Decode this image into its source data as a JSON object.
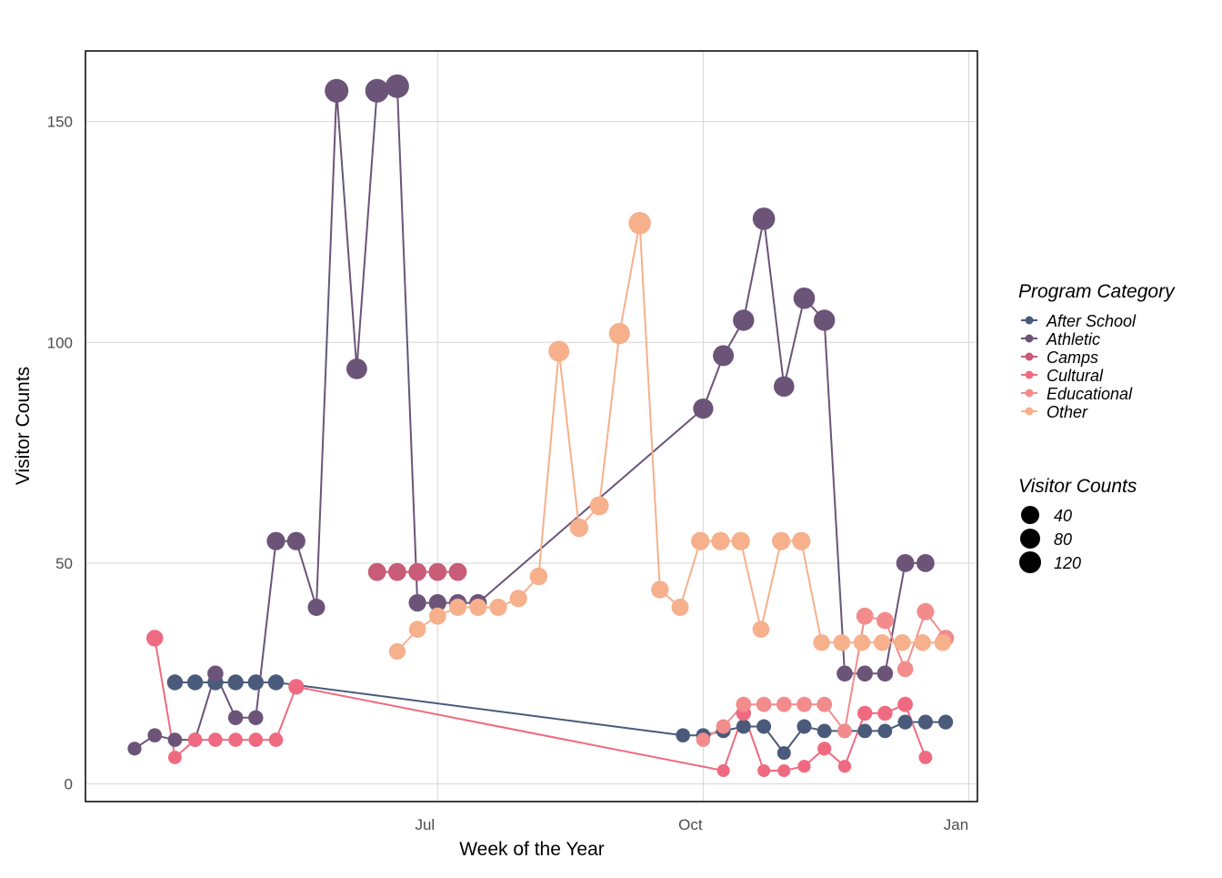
{
  "chart_data": {
    "type": "scatter",
    "title": "",
    "xlabel": "Week of the Year",
    "ylabel": "Visitor Counts",
    "grid": true,
    "legend_position": "right",
    "x_ticks": [
      "Jul",
      "Oct",
      "Jan"
    ],
    "x_tick_values": [
      "2018-07-01",
      "2018-10-01",
      "2019-01-01"
    ],
    "xlim": [
      "2018-03-01",
      "2019-01-04"
    ],
    "y_ticks": [
      0,
      50,
      100,
      150
    ],
    "ylim": [
      -4,
      166
    ],
    "color_legend": {
      "title": "Program Category",
      "entries": [
        "After School",
        "Athletic",
        "Camps",
        "Cultural",
        "Educational",
        "Other"
      ]
    },
    "size_legend": {
      "title": "Visitor Counts",
      "entries": [
        "40",
        "80",
        "120"
      ]
    },
    "series": [
      {
        "name": "After School",
        "color": "#4a5a7a",
        "x": [
          "2018-04-01",
          "2018-04-08",
          "2018-04-15",
          "2018-04-22",
          "2018-04-29",
          "2018-05-06",
          "2018-09-24",
          "2018-10-01",
          "2018-10-08",
          "2018-10-15",
          "2018-10-22",
          "2018-10-29",
          "2018-11-05",
          "2018-11-12",
          "2018-11-19",
          "2018-11-26",
          "2018-12-03",
          "2018-12-10",
          "2018-12-17",
          "2018-12-24"
        ],
        "y": [
          23,
          23,
          23,
          23,
          23,
          23,
          11,
          11,
          12,
          13,
          13,
          7,
          13,
          12,
          12,
          12,
          12,
          14,
          14,
          14
        ]
      },
      {
        "name": "Athletic",
        "color": "#6b5478",
        "x": [
          "2018-03-18",
          "2018-03-25",
          "2018-04-01",
          "2018-04-08",
          "2018-04-15",
          "2018-04-22",
          "2018-04-29",
          "2018-05-06",
          "2018-05-13",
          "2018-05-20",
          "2018-05-27",
          "2018-06-03",
          "2018-06-10",
          "2018-06-17",
          "2018-06-24",
          "2018-07-01",
          "2018-07-08",
          "2018-07-15",
          "2018-10-01",
          "2018-10-08",
          "2018-10-15",
          "2018-10-22",
          "2018-10-29",
          "2018-11-05",
          "2018-11-12",
          "2018-11-19",
          "2018-11-26",
          "2018-12-03",
          "2018-12-10",
          "2018-12-17"
        ],
        "y": [
          8,
          11,
          10,
          10,
          25,
          15,
          15,
          55,
          55,
          40,
          157,
          94,
          157,
          158,
          41,
          41,
          41,
          41,
          85,
          97,
          105,
          128,
          90,
          110,
          105,
          25,
          25,
          25,
          50,
          50
        ]
      },
      {
        "name": "Camps",
        "color": "#c95c78",
        "x": [
          "2018-06-10",
          "2018-06-17",
          "2018-06-24",
          "2018-07-01",
          "2018-07-08"
        ],
        "y": [
          48,
          48,
          48,
          48,
          48
        ]
      },
      {
        "name": "Cultural",
        "color": "#ef6a80",
        "x": [
          "2018-03-25",
          "2018-04-01",
          "2018-04-08",
          "2018-04-15",
          "2018-04-22",
          "2018-04-29",
          "2018-05-06",
          "2018-05-13",
          "2018-10-08",
          "2018-10-15",
          "2018-10-22",
          "2018-10-29",
          "2018-11-05",
          "2018-11-12",
          "2018-11-19",
          "2018-11-26",
          "2018-12-03",
          "2018-12-10",
          "2018-12-17"
        ],
        "y": [
          33,
          6,
          10,
          10,
          10,
          10,
          10,
          22,
          3,
          16,
          3,
          3,
          4,
          8,
          4,
          16,
          16,
          18,
          6
        ]
      },
      {
        "name": "Educational",
        "color": "#f28c8c",
        "x": [
          "2018-10-01",
          "2018-10-08",
          "2018-10-15",
          "2018-10-22",
          "2018-10-29",
          "2018-11-05",
          "2018-11-12",
          "2018-11-19",
          "2018-11-26",
          "2018-12-03",
          "2018-12-10",
          "2018-12-17",
          "2018-12-24"
        ],
        "y": [
          10,
          13,
          18,
          18,
          18,
          18,
          18,
          12,
          38,
          37,
          26,
          39,
          33
        ]
      },
      {
        "name": "Other",
        "color": "#f6b08c",
        "x": [
          "2018-06-17",
          "2018-06-24",
          "2018-07-01",
          "2018-07-08",
          "2018-07-15",
          "2018-07-22",
          "2018-07-29",
          "2018-08-05",
          "2018-08-12",
          "2018-08-19",
          "2018-08-26",
          "2018-09-02",
          "2018-09-09",
          "2018-09-16",
          "2018-09-23",
          "2018-09-30",
          "2018-10-07",
          "2018-10-14",
          "2018-10-21",
          "2018-10-28",
          "2018-11-04",
          "2018-11-11",
          "2018-11-18",
          "2018-11-25",
          "2018-12-02",
          "2018-12-09",
          "2018-12-16",
          "2018-12-23"
        ],
        "y": [
          30,
          35,
          38,
          40,
          40,
          40,
          42,
          47,
          98,
          58,
          63,
          102,
          127,
          44,
          40,
          55,
          55,
          55,
          35,
          55,
          55,
          32,
          32,
          32,
          32,
          32,
          32,
          32
        ]
      }
    ]
  }
}
